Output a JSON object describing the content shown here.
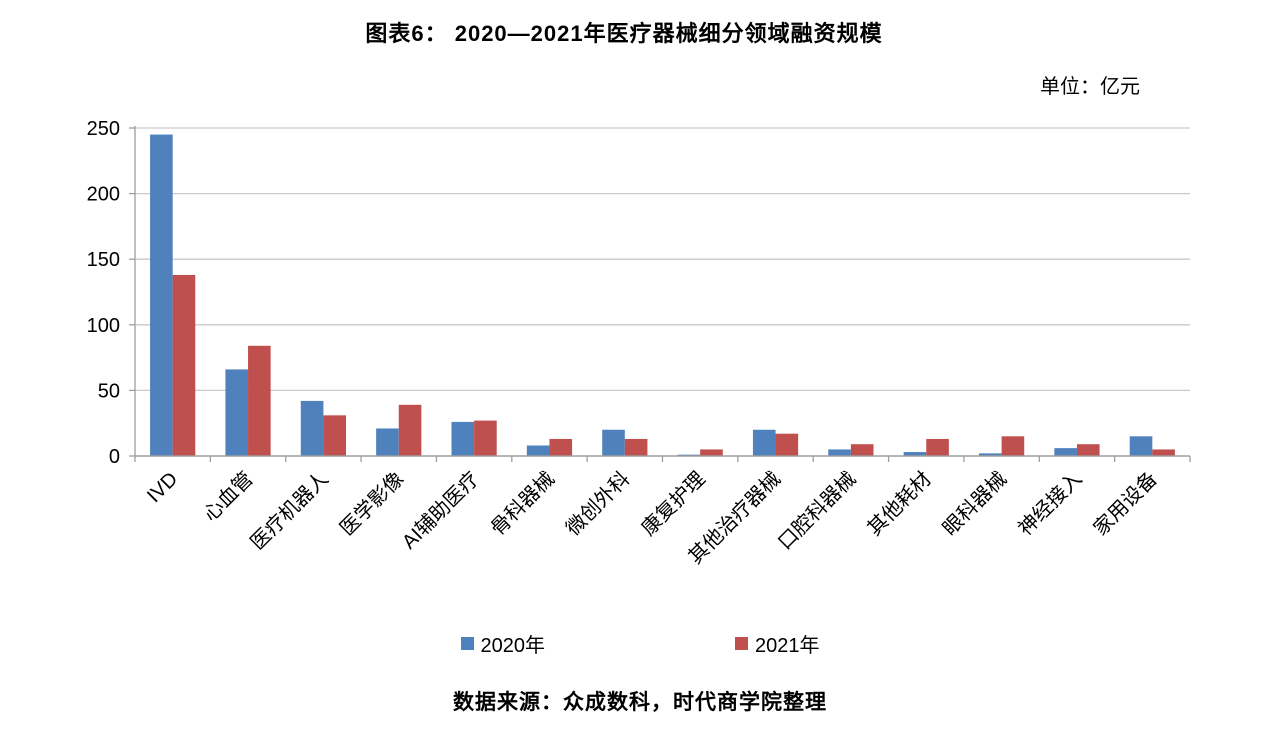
{
  "chart_data": {
    "type": "bar",
    "title": "图表6： 2020—2021年医疗器械细分领域融资规模",
    "unit_label": "单位：亿元",
    "source": "数据来源：众成数科，时代商学院整理",
    "categories": [
      "IVD",
      "心血管",
      "医疗机器人",
      "医学影像",
      "AI辅助医疗",
      "骨科器械",
      "微创外科",
      "康复护理",
      "其他治疗器械",
      "口腔科器械",
      "其他耗材",
      "眼科器械",
      "神经接入",
      "家用设备"
    ],
    "series": [
      {
        "name": "2020年",
        "color": "#4F81BD",
        "values": [
          245,
          66,
          42,
          21,
          26,
          8,
          20,
          1,
          20,
          5,
          3,
          2,
          6,
          15
        ]
      },
      {
        "name": "2021年",
        "color": "#C0504D",
        "values": [
          138,
          84,
          31,
          39,
          27,
          13,
          13,
          5,
          17,
          9,
          13,
          15,
          9,
          5
        ]
      }
    ],
    "ylabel": "",
    "xlabel": "",
    "ylim": [
      0,
      250
    ],
    "yticks": [
      0,
      50,
      100,
      150,
      200,
      250
    ],
    "grid": true,
    "legend_position": "bottom",
    "x_label_rotation_deg": 45,
    "colors": {
      "grid": "#C9C9C9",
      "axis": "#9E9E9E",
      "text": "#000000"
    }
  }
}
